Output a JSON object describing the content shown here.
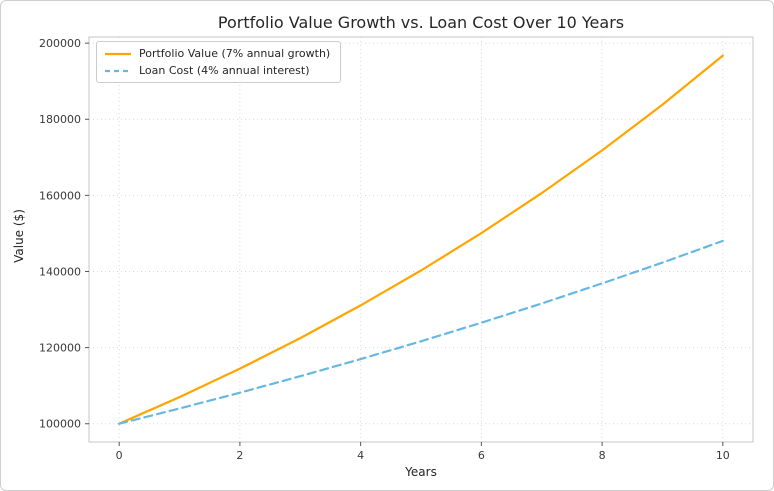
{
  "chart_data": {
    "type": "line",
    "title": "Portfolio Value Growth vs. Loan Cost Over 10 Years",
    "xlabel": "Years",
    "ylabel": "Value ($)",
    "x": [
      0,
      1,
      2,
      3,
      4,
      5,
      6,
      7,
      8,
      9,
      10
    ],
    "series": [
      {
        "name": "Portfolio Value (7% annual growth)",
        "color": "#FFA500",
        "style": "solid",
        "values": [
          100000,
          107000,
          114490,
          122504,
          131080,
          140255,
          150073,
          160578,
          171819,
          183846,
          196715
        ]
      },
      {
        "name": "Loan Cost (4% annual interest)",
        "color": "#66B8E3",
        "style": "dashed",
        "values": [
          100000,
          104000,
          108160,
          112486,
          116986,
          121665,
          126532,
          131593,
          136857,
          142331,
          148024
        ]
      }
    ],
    "xlim": [
      -0.5,
      10.5
    ],
    "ylim": [
      95200,
      201600
    ],
    "xticks": [
      0,
      2,
      4,
      6,
      8,
      10
    ],
    "yticks": [
      100000,
      120000,
      140000,
      160000,
      180000,
      200000
    ],
    "grid": true,
    "legend_position": "upper left",
    "grid_color": "#d9d9d9",
    "spine_color": "#c6c6c6",
    "tick_color": "#555555"
  }
}
